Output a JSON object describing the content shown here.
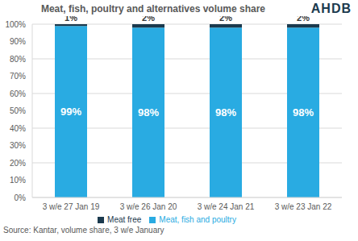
{
  "chart_data": {
    "type": "bar",
    "title": "Meat, fish, poultry and alternatives volume share",
    "logo": "AHDB",
    "source": "Source: Kantar, volume share, 3 w/e January",
    "categories": [
      "3 w/e 27 Jan 19",
      "3 w/e 26 Jan 20",
      "3 w/e 24 Jan 21",
      "3 w/e 23 Jan 22"
    ],
    "series": [
      {
        "name": "Meat, fish and poultry",
        "color": "#29ABE2",
        "values": [
          99,
          98,
          98,
          98
        ],
        "value_labels": [
          "99%",
          "98%",
          "98%",
          "98%"
        ]
      },
      {
        "name": "Meat free",
        "color": "#1B3A4E",
        "values": [
          1,
          2,
          2,
          2
        ],
        "value_labels": [
          "1%",
          "2%",
          "2%",
          "2%"
        ]
      }
    ],
    "stacked": true,
    "data_labels": true,
    "grid": true,
    "legend": "bottom",
    "ylim": [
      0,
      100
    ],
    "yticks": [
      {
        "value": 0,
        "label": "0%"
      },
      {
        "value": 10,
        "label": "10%"
      },
      {
        "value": 20,
        "label": "20%"
      },
      {
        "value": 30,
        "label": "30%"
      },
      {
        "value": 40,
        "label": "40%"
      },
      {
        "value": 50,
        "label": "50%"
      },
      {
        "value": 60,
        "label": "60%"
      },
      {
        "value": 70,
        "label": "70%"
      },
      {
        "value": 80,
        "label": "80%"
      },
      {
        "value": 90,
        "label": "90%"
      },
      {
        "value": 100,
        "label": "100%"
      }
    ]
  }
}
